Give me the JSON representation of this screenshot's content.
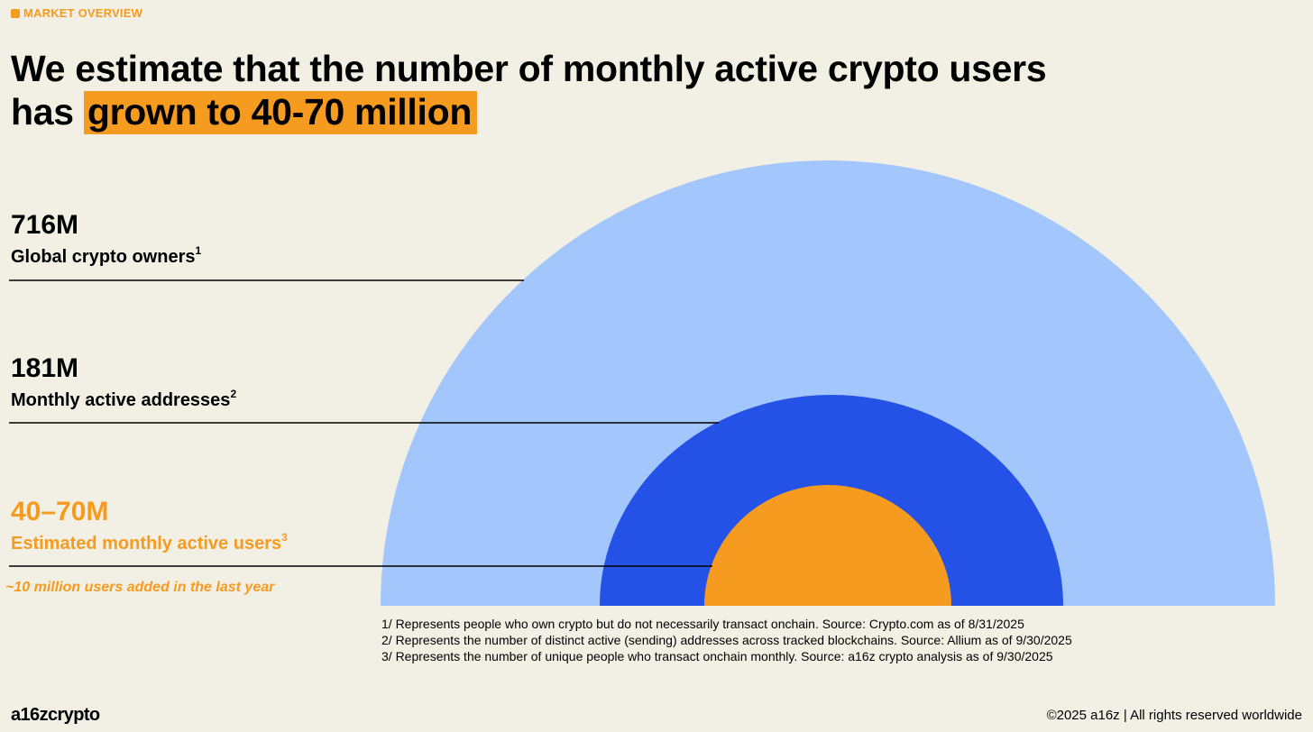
{
  "section_tag": "MARKET OVERVIEW",
  "headline": {
    "line1": "We estimate that the number of monthly active crypto users",
    "prefix": "has ",
    "highlight": "grown to 40-70 million"
  },
  "colors": {
    "background": "#f2f0e4",
    "light_blue": "#a3c6fc",
    "blue": "#2451e6",
    "orange": "#f59b20"
  },
  "stats": [
    {
      "value": "716M",
      "label": "Global crypto owners",
      "note_ref": "1"
    },
    {
      "value": "181M",
      "label": "Monthly active addresses",
      "note_ref": "2"
    },
    {
      "value": "40–70M",
      "label": "Estimated monthly active users",
      "note_ref": "3"
    }
  ],
  "stat_note": "~10 million users added in the last year",
  "footnotes": [
    "1/ Represents people who own crypto but do not necessarily transact onchain. Source: Crypto.com as of 8/31/2025",
    "2/ Represents the number of distinct active (sending) addresses across tracked blockchains. Source: Allium as of 9/30/2025",
    "3/ Represents the number of unique people who transact onchain monthly. Source: a16z crypto analysis as of 9/30/2025"
  ],
  "footer": {
    "brand": "a16zcrypto",
    "copyright": "©2025 a16z | All rights reserved worldwide"
  }
}
